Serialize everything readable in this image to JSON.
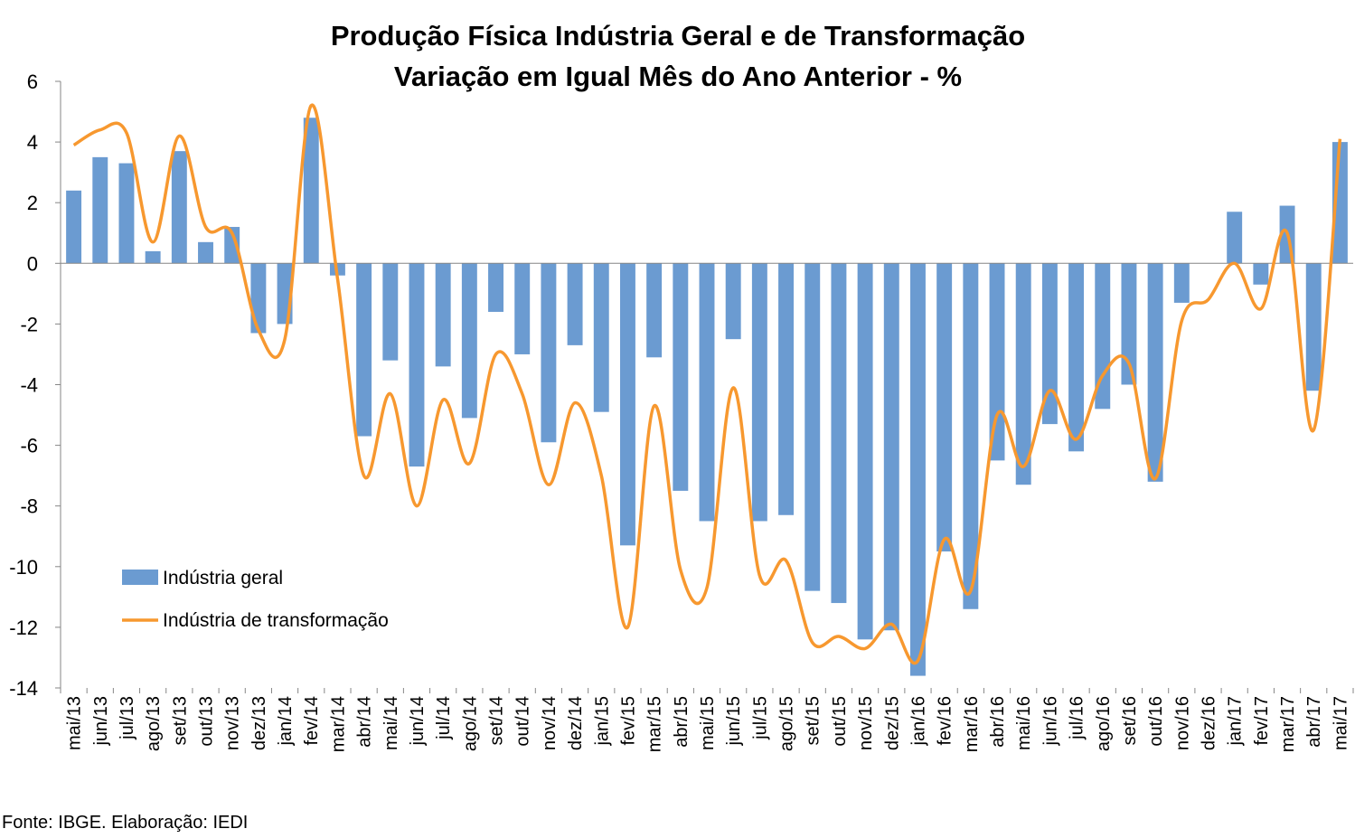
{
  "chart_data": {
    "type": "bar",
    "title": "Produção Física Indústria Geral e de Transformação",
    "subtitle": "Variação em Igual Mês do Ano Anterior - %",
    "ylim": [
      -14,
      6
    ],
    "yticks": [
      6,
      4,
      2,
      0,
      -2,
      -4,
      -6,
      -8,
      -10,
      -12,
      -14
    ],
    "grid": false,
    "legend_position": "bottom-left",
    "categories": [
      "mai/13",
      "jun/13",
      "jul/13",
      "ago/13",
      "set/13",
      "out/13",
      "nov/13",
      "dez/13",
      "jan/14",
      "fev/14",
      "mar/14",
      "abr/14",
      "mai/14",
      "jun/14",
      "jul/14",
      "ago/14",
      "set/14",
      "out/14",
      "nov/14",
      "dez/14",
      "jan/15",
      "fev/15",
      "mar/15",
      "abr/15",
      "mai/15",
      "jun/15",
      "jul/15",
      "ago/15",
      "set/15",
      "out/15",
      "nov/15",
      "dez/15",
      "jan/16",
      "fev/16",
      "mar/16",
      "abr/16",
      "mai/16",
      "jun/16",
      "jul/16",
      "ago/16",
      "set/16",
      "out/16",
      "nov/16",
      "dez/16",
      "jan/17",
      "fev/17",
      "mar/17",
      "abr/17",
      "mai/17"
    ],
    "series": [
      {
        "name": "Indústria geral",
        "type": "bar",
        "color": "#6b9bd1",
        "values": [
          2.4,
          3.5,
          3.3,
          0.4,
          3.7,
          0.7,
          1.2,
          -2.3,
          -2.0,
          4.8,
          -0.4,
          -5.7,
          -3.2,
          -6.7,
          -3.4,
          -5.1,
          -1.6,
          -3.0,
          -5.9,
          -2.7,
          -4.9,
          -9.3,
          -3.1,
          -7.5,
          -8.5,
          -2.5,
          -8.5,
          -8.3,
          -10.8,
          -11.2,
          -12.4,
          -12.1,
          -13.6,
          -9.5,
          -11.4,
          -6.5,
          -7.3,
          -5.3,
          -6.2,
          -4.8,
          -4.0,
          -7.2,
          -1.3,
          0.0,
          1.7,
          -0.7,
          1.9,
          -4.2,
          4.0
        ]
      },
      {
        "name": "Indústria de transformação",
        "type": "line",
        "color": "#f7982f",
        "values": [
          3.9,
          4.4,
          4.3,
          0.7,
          4.2,
          1.2,
          1.0,
          -2.2,
          -2.5,
          5.2,
          -0.5,
          -7.0,
          -4.3,
          -8.0,
          -4.5,
          -6.6,
          -3.0,
          -4.3,
          -7.3,
          -4.6,
          -7.0,
          -12.0,
          -4.7,
          -10.1,
          -10.7,
          -4.1,
          -10.3,
          -9.8,
          -12.5,
          -12.3,
          -12.7,
          -11.9,
          -13.1,
          -9.1,
          -10.8,
          -5.0,
          -6.7,
          -4.2,
          -5.8,
          -3.7,
          -3.3,
          -7.1,
          -1.9,
          -1.2,
          0.0,
          -1.5,
          1.0,
          -5.5,
          4.1
        ]
      }
    ],
    "source": "Fonte: IBGE. Elaboração: IEDI"
  }
}
